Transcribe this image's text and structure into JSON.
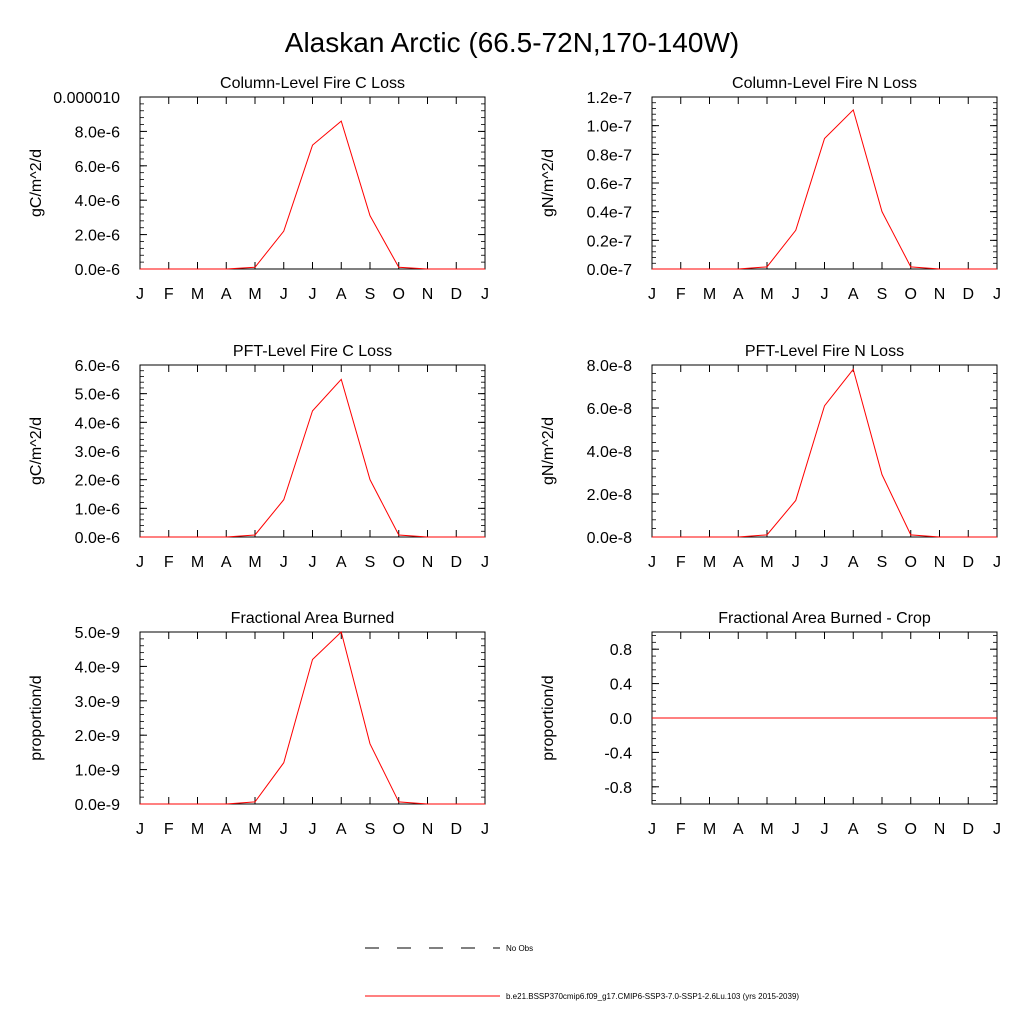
{
  "figure": {
    "title": "Alaskan Arctic (66.5-72N,170-140W)",
    "line_color": "#ff0000",
    "months": [
      "J",
      "F",
      "M",
      "A",
      "M",
      "J",
      "J",
      "A",
      "S",
      "O",
      "N",
      "D",
      "J"
    ]
  },
  "legend": {
    "obs_label": "No Obs",
    "model_label": "b.e21.BSSP370cmip6.f09_g17.CMIP6-SSP3-7.0-SSP1-2.6Lu.103 (yrs 2015-2039)"
  },
  "chart_data": [
    {
      "type": "line",
      "title": "Column-Level Fire C Loss",
      "ylabel": "gC/m^2/d",
      "x": [
        "J",
        "F",
        "M",
        "A",
        "M",
        "J",
        "J",
        "A",
        "S",
        "O",
        "N",
        "D",
        "J"
      ],
      "yticks": [
        "0.0e-6",
        "2.0e-6",
        "4.0e-6",
        "6.0e-6",
        "8.0e-6",
        "0.000010"
      ],
      "ytick_values": [
        0,
        2e-06,
        4e-06,
        6e-06,
        8e-06,
        1e-05
      ],
      "ylim": [
        0,
        1e-05
      ],
      "series": [
        {
          "values": [
            0,
            0,
            0,
            0,
            1e-07,
            2.2e-06,
            7.2e-06,
            8.6e-06,
            3.1e-06,
            1e-07,
            0,
            0,
            0
          ]
        }
      ]
    },
    {
      "type": "line",
      "title": "Column-Level Fire N Loss",
      "ylabel": "gN/m^2/d",
      "x": [
        "J",
        "F",
        "M",
        "A",
        "M",
        "J",
        "J",
        "A",
        "S",
        "O",
        "N",
        "D",
        "J"
      ],
      "yticks": [
        "0.0e-7",
        "0.2e-7",
        "0.4e-7",
        "0.6e-7",
        "0.8e-7",
        "1.0e-7",
        "1.2e-7"
      ],
      "ytick_values": [
        0,
        2e-08,
        4e-08,
        6e-08,
        8e-08,
        1e-07,
        1.2e-07
      ],
      "ylim": [
        0,
        1.2e-07
      ],
      "series": [
        {
          "values": [
            0,
            0,
            0,
            0,
            1.5e-09,
            2.7e-08,
            9.1e-08,
            1.11e-07,
            4e-08,
            1.5e-09,
            0,
            0,
            0
          ]
        }
      ]
    },
    {
      "type": "line",
      "title": "PFT-Level Fire C Loss",
      "ylabel": "gC/m^2/d",
      "x": [
        "J",
        "F",
        "M",
        "A",
        "M",
        "J",
        "J",
        "A",
        "S",
        "O",
        "N",
        "D",
        "J"
      ],
      "yticks": [
        "0.0e-6",
        "1.0e-6",
        "2.0e-6",
        "3.0e-6",
        "4.0e-6",
        "5.0e-6",
        "6.0e-6"
      ],
      "ytick_values": [
        0,
        1e-06,
        2e-06,
        3e-06,
        4e-06,
        5e-06,
        6e-06
      ],
      "ylim": [
        0,
        6e-06
      ],
      "series": [
        {
          "values": [
            0,
            0,
            0,
            0,
            7e-08,
            1.3e-06,
            4.4e-06,
            5.5e-06,
            2e-06,
            7e-08,
            0,
            0,
            0
          ]
        }
      ]
    },
    {
      "type": "line",
      "title": "PFT-Level Fire N Loss",
      "ylabel": "gN/m^2/d",
      "x": [
        "J",
        "F",
        "M",
        "A",
        "M",
        "J",
        "J",
        "A",
        "S",
        "O",
        "N",
        "D",
        "J"
      ],
      "yticks": [
        "0.0e-8",
        "2.0e-8",
        "4.0e-8",
        "6.0e-8",
        "8.0e-8"
      ],
      "ytick_values": [
        0,
        2e-08,
        4e-08,
        6e-08,
        8e-08
      ],
      "ylim": [
        0,
        8e-08
      ],
      "series": [
        {
          "values": [
            0,
            0,
            0,
            0,
            1e-09,
            1.7e-08,
            6.1e-08,
            7.8e-08,
            2.9e-08,
            1e-09,
            0,
            0,
            0
          ]
        }
      ]
    },
    {
      "type": "line",
      "title": "Fractional Area Burned",
      "ylabel": "proportion/d",
      "x": [
        "J",
        "F",
        "M",
        "A",
        "M",
        "J",
        "J",
        "A",
        "S",
        "O",
        "N",
        "D",
        "J"
      ],
      "yticks": [
        "0.0e-9",
        "1.0e-9",
        "2.0e-9",
        "3.0e-9",
        "4.0e-9",
        "5.0e-9"
      ],
      "ytick_values": [
        0,
        1e-09,
        2e-09,
        3e-09,
        4e-09,
        5e-09
      ],
      "ylim": [
        0,
        5e-09
      ],
      "series": [
        {
          "values": [
            0,
            0,
            0,
            0,
            6e-11,
            1.2e-09,
            4.2e-09,
            5e-09,
            1.75e-09,
            6e-11,
            0,
            0,
            0
          ]
        }
      ]
    },
    {
      "type": "line",
      "title": "Fractional Area Burned - Crop",
      "ylabel": "proportion/d",
      "x": [
        "J",
        "F",
        "M",
        "A",
        "M",
        "J",
        "J",
        "A",
        "S",
        "O",
        "N",
        "D",
        "J"
      ],
      "yticks": [
        "-0.8",
        "-0.4",
        "0.0",
        "0.4",
        "0.8"
      ],
      "ytick_values": [
        -0.8,
        -0.4,
        0,
        0.4,
        0.8
      ],
      "ylim": [
        -1.0,
        1.0
      ],
      "series": [
        {
          "values": [
            0,
            0,
            0,
            0,
            0,
            0,
            0,
            0,
            0,
            0,
            0,
            0,
            0
          ]
        }
      ]
    }
  ]
}
